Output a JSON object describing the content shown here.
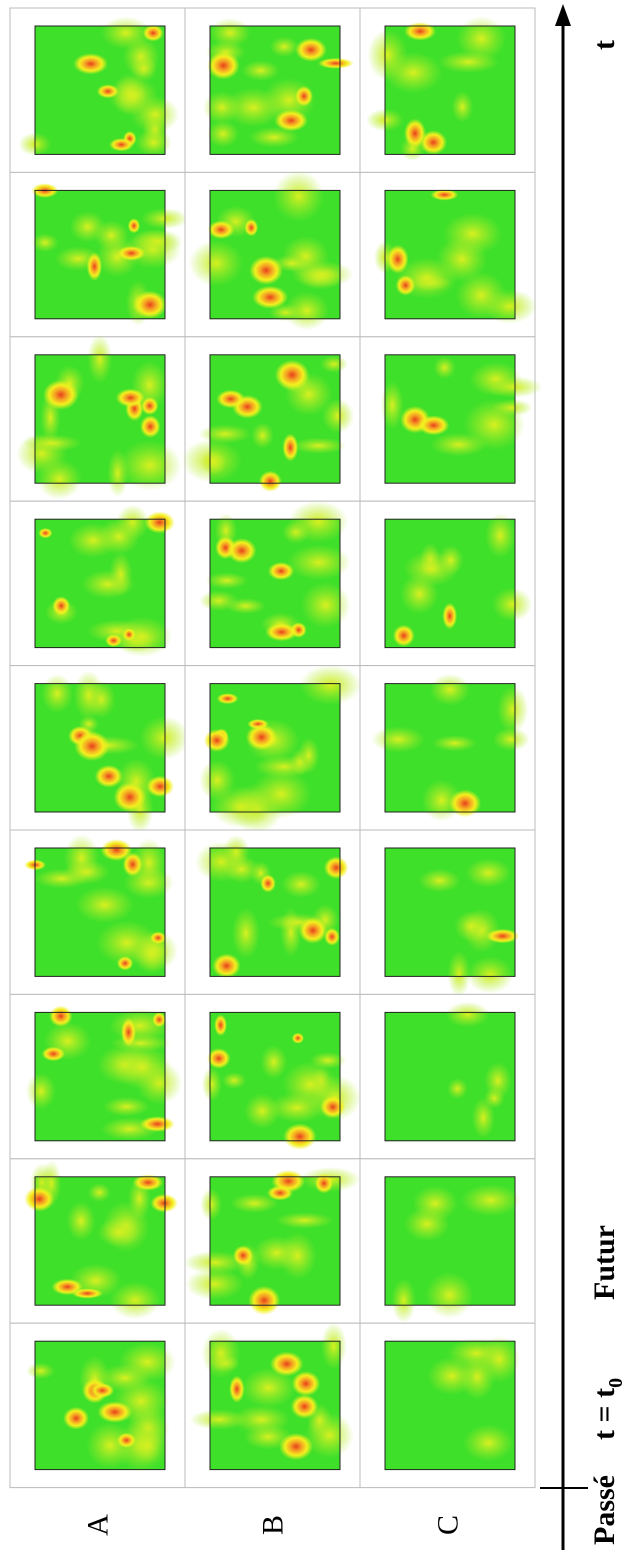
{
  "row_labels": [
    "A",
    "B",
    "C"
  ],
  "time_axis": {
    "past": "Passé",
    "present": "t = t",
    "present_subscript": "0",
    "future": "Futur",
    "axis_label": "t"
  }
}
